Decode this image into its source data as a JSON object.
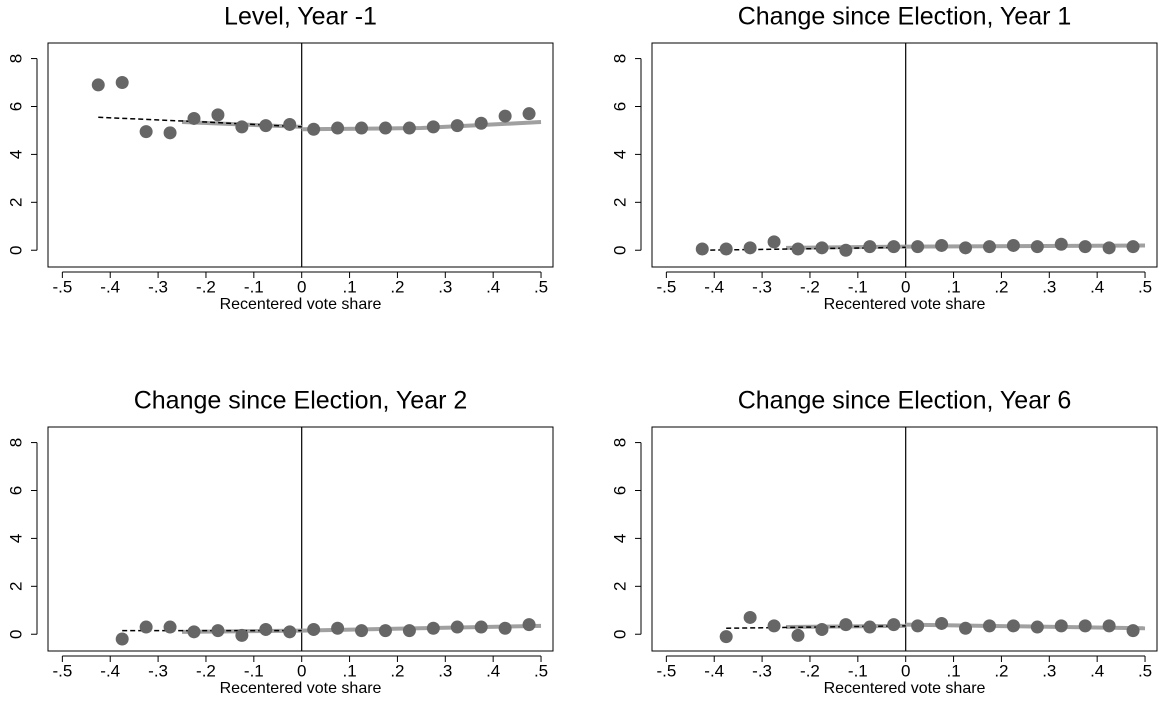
{
  "chart_data": [
    {
      "type": "scatter",
      "title": "Level, Year -1",
      "xlabel": "Recentered vote share",
      "xlim": [
        -0.53,
        0.525
      ],
      "ylim": [
        -0.7,
        8.65
      ],
      "xticks": [
        {
          "value": -0.5,
          "label": "-.5"
        },
        {
          "value": -0.4,
          "label": "-.4"
        },
        {
          "value": -0.3,
          "label": "-.3"
        },
        {
          "value": -0.2,
          "label": "-.2"
        },
        {
          "value": -0.1,
          "label": "-.1"
        },
        0,
        {
          "value": 0.1,
          "label": ".1"
        },
        {
          "value": 0.2,
          "label": ".2"
        },
        {
          "value": 0.3,
          "label": ".3"
        },
        {
          "value": 0.4,
          "label": ".4"
        },
        {
          "value": 0.5,
          "label": ".5"
        }
      ],
      "yticks": [
        0,
        2,
        4,
        6,
        8
      ],
      "vline": 0,
      "point_color": "#666666",
      "x": [
        -0.425,
        -0.375,
        -0.325,
        -0.275,
        -0.225,
        -0.175,
        -0.125,
        -0.075,
        -0.025,
        0.025,
        0.075,
        0.125,
        0.175,
        0.225,
        0.275,
        0.325,
        0.375,
        0.425,
        0.475
      ],
      "values": [
        6.9,
        7.0,
        4.95,
        4.9,
        5.5,
        5.65,
        5.15,
        5.2,
        5.25,
        5.05,
        5.1,
        5.1,
        5.1,
        5.1,
        5.15,
        5.2,
        5.3,
        5.6,
        5.7
      ],
      "fits": [
        {
          "color": "#a0a0a0",
          "dash": false,
          "x": [
            -0.25,
            0
          ],
          "values": [
            5.35,
            5.15
          ]
        },
        {
          "color": "#a0a0a0",
          "dash": false,
          "x": [
            0,
            0.25,
            0.5
          ],
          "values": [
            5.05,
            5.1,
            5.35
          ]
        },
        {
          "color": "#000000",
          "dash": true,
          "x": [
            -0.425,
            -0.2,
            0
          ],
          "values": [
            5.55,
            5.35,
            5.15
          ]
        }
      ]
    },
    {
      "type": "scatter",
      "title": "Change since Election, Year 1",
      "xlabel": "Recentered vote share",
      "xlim": [
        -0.53,
        0.525
      ],
      "ylim": [
        -0.7,
        8.65
      ],
      "xticks": [
        {
          "value": -0.5,
          "label": "-.5"
        },
        {
          "value": -0.4,
          "label": "-.4"
        },
        {
          "value": -0.3,
          "label": "-.3"
        },
        {
          "value": -0.2,
          "label": "-.2"
        },
        {
          "value": -0.1,
          "label": "-.1"
        },
        0,
        {
          "value": 0.1,
          "label": ".1"
        },
        {
          "value": 0.2,
          "label": ".2"
        },
        {
          "value": 0.3,
          "label": ".3"
        },
        {
          "value": 0.4,
          "label": ".4"
        },
        {
          "value": 0.5,
          "label": ".5"
        }
      ],
      "yticks": [
        0,
        2,
        4,
        6,
        8
      ],
      "vline": 0,
      "point_color": "#666666",
      "x": [
        -0.425,
        -0.375,
        -0.325,
        -0.275,
        -0.225,
        -0.175,
        -0.125,
        -0.075,
        -0.025,
        0.025,
        0.075,
        0.125,
        0.175,
        0.225,
        0.275,
        0.325,
        0.375,
        0.425,
        0.475
      ],
      "values": [
        0.05,
        0.05,
        0.1,
        0.35,
        0.05,
        0.1,
        0.0,
        0.15,
        0.15,
        0.15,
        0.2,
        0.1,
        0.15,
        0.2,
        0.15,
        0.25,
        0.15,
        0.1,
        0.15
      ],
      "fits": [
        {
          "color": "#a0a0a0",
          "dash": false,
          "x": [
            -0.25,
            0
          ],
          "values": [
            0.1,
            0.15
          ]
        },
        {
          "color": "#a0a0a0",
          "dash": false,
          "x": [
            0,
            0.5
          ],
          "values": [
            0.15,
            0.2
          ]
        },
        {
          "color": "#000000",
          "dash": true,
          "x": [
            -0.425,
            0
          ],
          "values": [
            0.0,
            0.12
          ]
        }
      ]
    },
    {
      "type": "scatter",
      "title": "Change since Election, Year 2",
      "xlabel": "Recentered vote share",
      "xlim": [
        -0.53,
        0.525
      ],
      "ylim": [
        -0.7,
        8.65
      ],
      "xticks": [
        {
          "value": -0.5,
          "label": "-.5"
        },
        {
          "value": -0.4,
          "label": "-.4"
        },
        {
          "value": -0.3,
          "label": "-.3"
        },
        {
          "value": -0.2,
          "label": "-.2"
        },
        {
          "value": -0.1,
          "label": "-.1"
        },
        0,
        {
          "value": 0.1,
          "label": ".1"
        },
        {
          "value": 0.2,
          "label": ".2"
        },
        {
          "value": 0.3,
          "label": ".3"
        },
        {
          "value": 0.4,
          "label": ".4"
        },
        {
          "value": 0.5,
          "label": ".5"
        }
      ],
      "yticks": [
        0,
        2,
        4,
        6,
        8
      ],
      "vline": 0,
      "point_color": "#666666",
      "x": [
        -0.375,
        -0.325,
        -0.275,
        -0.225,
        -0.175,
        -0.125,
        -0.075,
        -0.025,
        0.025,
        0.075,
        0.125,
        0.175,
        0.225,
        0.275,
        0.325,
        0.375,
        0.425,
        0.475
      ],
      "values": [
        -0.2,
        0.3,
        0.3,
        0.1,
        0.15,
        -0.05,
        0.2,
        0.1,
        0.2,
        0.25,
        0.15,
        0.15,
        0.15,
        0.25,
        0.3,
        0.3,
        0.25,
        0.4
      ],
      "fits": [
        {
          "color": "#a0a0a0",
          "dash": false,
          "x": [
            -0.25,
            0
          ],
          "values": [
            0.1,
            0.15
          ]
        },
        {
          "color": "#a0a0a0",
          "dash": false,
          "x": [
            0,
            0.5
          ],
          "values": [
            0.15,
            0.35
          ]
        },
        {
          "color": "#000000",
          "dash": true,
          "x": [
            -0.375,
            0
          ],
          "values": [
            0.15,
            0.15
          ]
        }
      ]
    },
    {
      "type": "scatter",
      "title": "Change since Election, Year 6",
      "xlabel": "Recentered vote share",
      "xlim": [
        -0.53,
        0.525
      ],
      "ylim": [
        -0.7,
        8.65
      ],
      "xticks": [
        {
          "value": -0.5,
          "label": "-.5"
        },
        {
          "value": -0.4,
          "label": "-.4"
        },
        {
          "value": -0.3,
          "label": "-.3"
        },
        {
          "value": -0.2,
          "label": "-.2"
        },
        {
          "value": -0.1,
          "label": "-.1"
        },
        0,
        {
          "value": 0.1,
          "label": ".1"
        },
        {
          "value": 0.2,
          "label": ".2"
        },
        {
          "value": 0.3,
          "label": ".3"
        },
        {
          "value": 0.4,
          "label": ".4"
        },
        {
          "value": 0.5,
          "label": ".5"
        }
      ],
      "yticks": [
        0,
        2,
        4,
        6,
        8
      ],
      "vline": 0,
      "point_color": "#666666",
      "x": [
        -0.375,
        -0.325,
        -0.275,
        -0.225,
        -0.175,
        -0.125,
        -0.075,
        -0.025,
        0.025,
        0.075,
        0.125,
        0.175,
        0.225,
        0.275,
        0.325,
        0.375,
        0.425,
        0.475
      ],
      "values": [
        -0.1,
        0.7,
        0.35,
        -0.05,
        0.2,
        0.4,
        0.3,
        0.4,
        0.35,
        0.45,
        0.25,
        0.35,
        0.35,
        0.3,
        0.35,
        0.35,
        0.35,
        0.15
      ],
      "fits": [
        {
          "color": "#a0a0a0",
          "dash": false,
          "x": [
            -0.25,
            0
          ],
          "values": [
            0.3,
            0.35
          ]
        },
        {
          "color": "#a0a0a0",
          "dash": false,
          "x": [
            0,
            0.5
          ],
          "values": [
            0.4,
            0.25
          ]
        },
        {
          "color": "#000000",
          "dash": true,
          "x": [
            -0.375,
            0
          ],
          "values": [
            0.25,
            0.35
          ]
        }
      ]
    }
  ]
}
